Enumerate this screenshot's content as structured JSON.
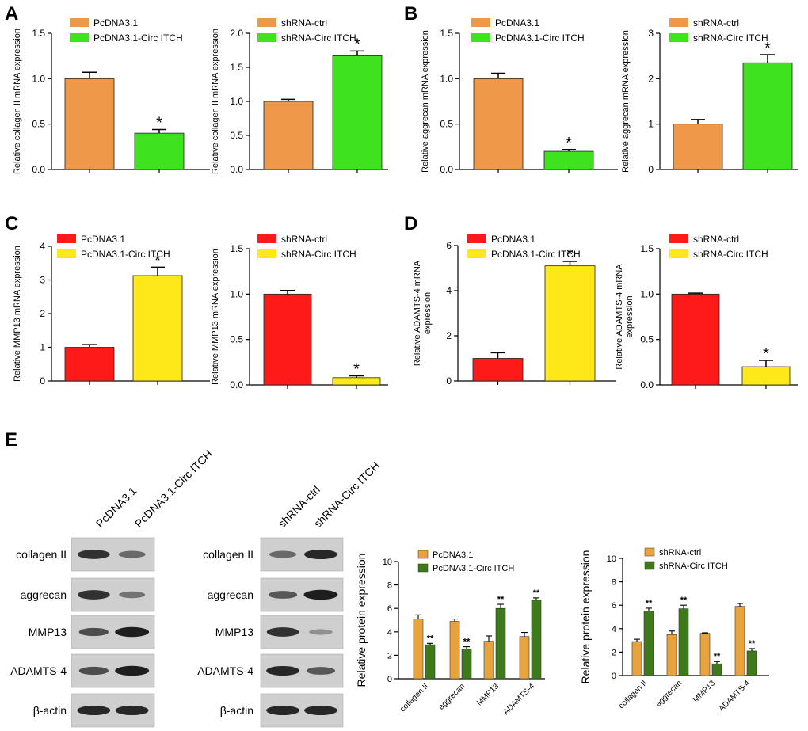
{
  "panel_labels": [
    "A",
    "B",
    "C",
    "D",
    "E"
  ],
  "chart_data": [
    {
      "id": "A1",
      "type": "bar",
      "categories": [
        "PcDNA3.1",
        "PcDNA3.1-Circ ITCH"
      ],
      "values": [
        1.0,
        0.4
      ],
      "errors": [
        0.07,
        0.04
      ],
      "sig": [
        "",
        "*"
      ],
      "colors": [
        "#F0984A",
        "#3EE21E"
      ],
      "ylabel": "Relative collagen II mRNA expression",
      "ylim": [
        0,
        1.5
      ],
      "yticks": [
        "0.0",
        "0.5",
        "1.0",
        "1.5"
      ],
      "legend": [
        "PcDNA3.1",
        "PcDNA3.1-Circ ITCH"
      ]
    },
    {
      "id": "A2",
      "type": "bar",
      "categories": [
        "shRNA-ctrl",
        "shRNA-Circ ITCH"
      ],
      "values": [
        1.0,
        1.67
      ],
      "errors": [
        0.03,
        0.07
      ],
      "sig": [
        "",
        "*"
      ],
      "colors": [
        "#F0984A",
        "#3EE21E"
      ],
      "ylabel": "Relative collagen II mRNA expression",
      "ylim": [
        0,
        2.0
      ],
      "yticks": [
        "0.0",
        "0.5",
        "1.0",
        "1.5",
        "2.0"
      ],
      "legend": [
        "shRNA-ctrl",
        "shRNA-Circ ITCH"
      ]
    },
    {
      "id": "B1",
      "type": "bar",
      "categories": [
        "PcDNA3.1",
        "PcDNA3.1-Circ ITCH"
      ],
      "values": [
        1.0,
        0.2
      ],
      "errors": [
        0.06,
        0.02
      ],
      "sig": [
        "",
        "*"
      ],
      "colors": [
        "#F0984A",
        "#3EE21E"
      ],
      "ylabel": "Relative aggrecan mRNA expression",
      "ylim": [
        0,
        1.5
      ],
      "yticks": [
        "0.0",
        "0.5",
        "1.0",
        "1.5"
      ],
      "legend": [
        "PcDNA3.1",
        "PcDNA3.1-Circ ITCH"
      ]
    },
    {
      "id": "B2",
      "type": "bar",
      "categories": [
        "shRNA-ctrl",
        "shRNA-Circ ITCH"
      ],
      "values": [
        1.0,
        2.35
      ],
      "errors": [
        0.1,
        0.18
      ],
      "sig": [
        "",
        "*"
      ],
      "colors": [
        "#F0984A",
        "#3EE21E"
      ],
      "ylabel": "Relative aggrecan mRNA expression",
      "ylim": [
        0,
        3
      ],
      "yticks": [
        "0",
        "1",
        "2",
        "3"
      ],
      "legend": [
        "shRNA-ctrl",
        "shRNA-Circ ITCH"
      ]
    },
    {
      "id": "C1",
      "type": "bar",
      "categories": [
        "PcDNA3.1",
        "PcDNA3.1-Circ ITCH"
      ],
      "values": [
        1.0,
        3.13
      ],
      "errors": [
        0.08,
        0.25
      ],
      "sig": [
        "",
        "*"
      ],
      "colors": [
        "#FF1A1A",
        "#FFE81A"
      ],
      "ylabel": "Relative MMP13 mRNA expression",
      "ylim": [
        0,
        4
      ],
      "yticks": [
        "0",
        "1",
        "2",
        "3",
        "4"
      ],
      "legend": [
        "PcDNA3.1",
        "PcDNA3.1-Circ ITCH"
      ]
    },
    {
      "id": "C2",
      "type": "bar",
      "categories": [
        "shRNA-ctrl",
        "shRNA-Circ ITCH"
      ],
      "values": [
        1.0,
        0.08
      ],
      "errors": [
        0.04,
        0.02
      ],
      "sig": [
        "",
        "*"
      ],
      "colors": [
        "#FF1A1A",
        "#FFE81A"
      ],
      "ylabel": "Relative MMP13 mRNA expression",
      "ylim": [
        0,
        1.5
      ],
      "yticks": [
        "0.0",
        "0.5",
        "1.0",
        "1.5"
      ],
      "legend": [
        "shRNA-ctrl",
        "shRNA-Circ ITCH"
      ]
    },
    {
      "id": "D1",
      "type": "bar",
      "categories": [
        "PcDNA3.1",
        "PcDNA3.1-Circ ITCH"
      ],
      "values": [
        1.0,
        5.1
      ],
      "errors": [
        0.25,
        0.2
      ],
      "sig": [
        "",
        "*"
      ],
      "colors": [
        "#FF1A1A",
        "#FFE81A"
      ],
      "ylabel": [
        "Relative ADAMTS-4 mRNA",
        "expression"
      ],
      "ylim": [
        0,
        6
      ],
      "yticks": [
        "0",
        "2",
        "4",
        "6"
      ],
      "legend": [
        "PcDNA3.1",
        "PcDNA3.1-Circ ITCH"
      ]
    },
    {
      "id": "D2",
      "type": "bar",
      "categories": [
        "shRNA-ctrl",
        "shRNA-Circ ITCH"
      ],
      "values": [
        1.0,
        0.2
      ],
      "errors": [
        0.01,
        0.07
      ],
      "sig": [
        "",
        "*"
      ],
      "colors": [
        "#FF1A1A",
        "#FFE81A"
      ],
      "ylabel": [
        "Relative ADAMTS-4 mRNA",
        "expression"
      ],
      "ylim": [
        0,
        1.5
      ],
      "yticks": [
        "0.0",
        "0.5",
        "1.0",
        "1.5"
      ],
      "legend": [
        "shRNA-ctrl",
        "shRNA-Circ ITCH"
      ]
    },
    {
      "id": "E1",
      "type": "grouped-bar",
      "categories": [
        "collagen II",
        "aggrecan",
        "MMP13",
        "ADAMTS-4"
      ],
      "series": [
        {
          "name": "PcDNA3.1",
          "values": [
            5.1,
            4.9,
            3.2,
            3.6
          ],
          "errors": [
            0.35,
            0.2,
            0.45,
            0.35
          ],
          "color": "#E8A33D"
        },
        {
          "name": "PcDNA3.1-Circ ITCH",
          "values": [
            2.9,
            2.55,
            6.0,
            6.7
          ],
          "errors": [
            0.12,
            0.18,
            0.35,
            0.2
          ],
          "color": "#3E7A1A",
          "sig": [
            "**",
            "**",
            "**",
            "**"
          ]
        }
      ],
      "ylabel": "Relative protein expression",
      "ylim": [
        0,
        10
      ],
      "yticks": [
        "0",
        "2",
        "4",
        "6",
        "8",
        "10"
      ]
    },
    {
      "id": "E2",
      "type": "grouped-bar",
      "categories": [
        "collagen II",
        "aggrecan",
        "MMP13",
        "ADAMTS-4"
      ],
      "series": [
        {
          "name": "shRNA-ctrl",
          "values": [
            2.9,
            3.5,
            3.6,
            5.9
          ],
          "errors": [
            0.2,
            0.3,
            0.05,
            0.25
          ],
          "color": "#E8A33D"
        },
        {
          "name": "shRNA-Circ ITCH",
          "values": [
            5.5,
            5.7,
            1.0,
            2.1
          ],
          "errors": [
            0.25,
            0.3,
            0.2,
            0.2
          ],
          "color": "#3E7A1A",
          "sig": [
            "**",
            "**",
            "**",
            "**"
          ]
        }
      ],
      "ylabel": "Relative protein expression",
      "ylim": [
        0,
        10
      ],
      "yticks": [
        "0",
        "2",
        "4",
        "6",
        "8",
        "10"
      ]
    }
  ],
  "western_blots": [
    {
      "id": "blot-left",
      "lanes": [
        "PcDNA3.1",
        "PcDNA3.1-Circ ITCH"
      ],
      "rows": [
        "collagen II",
        "aggrecan",
        "MMP13",
        "ADAMTS-4",
        "β-actin"
      ],
      "intensities": [
        [
          0.85,
          0.55
        ],
        [
          0.85,
          0.5
        ],
        [
          0.7,
          0.95
        ],
        [
          0.7,
          0.95
        ],
        [
          0.9,
          0.9
        ]
      ]
    },
    {
      "id": "blot-right",
      "lanes": [
        "shRNA-ctrl",
        "shRNA-Circ ITCH"
      ],
      "rows": [
        "collagen II",
        "aggrecan",
        "MMP13",
        "ADAMTS-4",
        "β-actin"
      ],
      "intensities": [
        [
          0.55,
          0.9
        ],
        [
          0.65,
          0.95
        ],
        [
          0.85,
          0.35
        ],
        [
          0.9,
          0.65
        ],
        [
          0.9,
          0.9
        ]
      ]
    }
  ]
}
